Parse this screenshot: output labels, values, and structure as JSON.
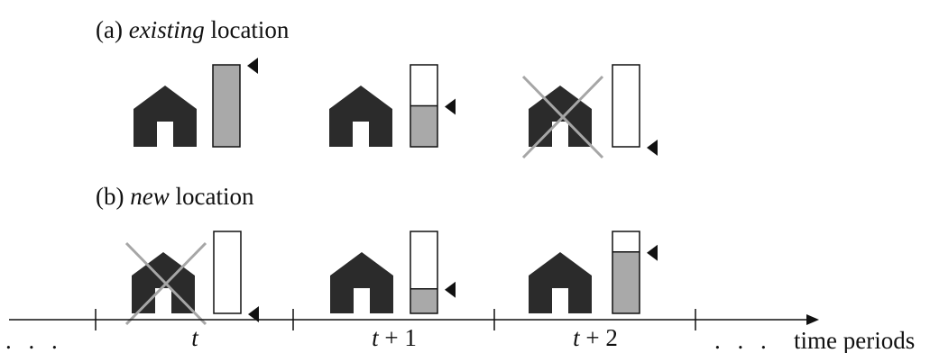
{
  "rows": {
    "a": {
      "prefix": "(a) ",
      "italic": "existing",
      "suffix": " location",
      "periods": [
        {
          "state": "open",
          "level": 1.0
        },
        {
          "state": "open",
          "level": 0.5
        },
        {
          "state": "closed",
          "level": 0.0
        }
      ]
    },
    "b": {
      "prefix": "(b) ",
      "italic": "new",
      "suffix": " location",
      "periods": [
        {
          "state": "closed",
          "level": 0.0
        },
        {
          "state": "open",
          "level": 0.3
        },
        {
          "state": "open",
          "level": 0.75
        }
      ]
    }
  },
  "timeline": {
    "left_dots": ". . .",
    "period_labels": [
      {
        "var": "t",
        "rest": ""
      },
      {
        "var": "t",
        "rest": " + 1"
      },
      {
        "var": "t",
        "rest": " + 2"
      }
    ],
    "right_dots": ". . .",
    "axis_label": "time periods"
  },
  "colors": {
    "house": "#2b2b2b",
    "fill": "#a9a9a9",
    "cross": "#a6a6a6",
    "outline": "#111111"
  }
}
